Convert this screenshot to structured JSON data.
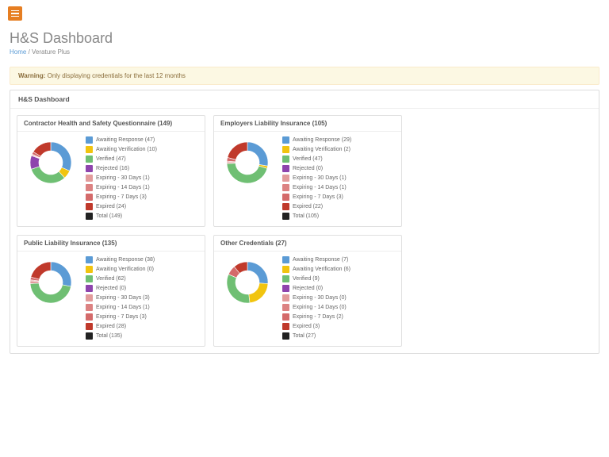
{
  "header": {
    "title": "H&S Dashboard",
    "breadcrumb_home": "Home",
    "breadcrumb_current": "Verature Plus"
  },
  "warning": {
    "label": "Warning:",
    "text": " Only displaying credentials for the last 12 months"
  },
  "panel_title": "H&S Dashboard",
  "status_colors": {
    "awaiting_response": "#5b9bd5",
    "awaiting_verification": "#f1c40f",
    "verified": "#6fbf73",
    "rejected": "#8e44ad",
    "expiring_30": "#e29b9b",
    "expiring_14": "#dc8282",
    "expiring_7": "#d46a6a",
    "expired": "#c0392b",
    "total": "#222222"
  },
  "status_labels": {
    "awaiting_response": "Awaiting Response",
    "awaiting_verification": "Awaiting Verification",
    "verified": "Verified",
    "rejected": "Rejected",
    "expiring_30": "Expiring - 30 Days",
    "expiring_14": "Expiring - 14 Days",
    "expiring_7": "Expiring - 7 Days",
    "expired": "Expired",
    "total": "Total"
  },
  "cards": [
    {
      "title": "Contractor Health and Safety Questionnaire",
      "total": 149,
      "values": {
        "awaiting_response": 47,
        "awaiting_verification": 10,
        "verified": 47,
        "rejected": 16,
        "expiring_30": 1,
        "expiring_14": 1,
        "expiring_7": 3,
        "expired": 24
      }
    },
    {
      "title": "Employers Liability Insurance",
      "total": 105,
      "values": {
        "awaiting_response": 29,
        "awaiting_verification": 2,
        "verified": 47,
        "rejected": 0,
        "expiring_30": 1,
        "expiring_14": 1,
        "expiring_7": 3,
        "expired": 22
      }
    },
    {
      "title": "Public Liability Insurance",
      "total": 135,
      "values": {
        "awaiting_response": 38,
        "awaiting_verification": 0,
        "verified": 62,
        "rejected": 0,
        "expiring_30": 3,
        "expiring_14": 1,
        "expiring_7": 3,
        "expired": 28
      }
    },
    {
      "title": "Other Credentials",
      "total": 27,
      "values": {
        "awaiting_response": 7,
        "awaiting_verification": 6,
        "verified": 9,
        "rejected": 0,
        "expiring_30": 0,
        "expiring_14": 0,
        "expiring_7": 2,
        "expired": 3
      }
    }
  ],
  "donut": {
    "outer_radius": 26,
    "inner_radius": 15,
    "background": "#ffffff"
  }
}
